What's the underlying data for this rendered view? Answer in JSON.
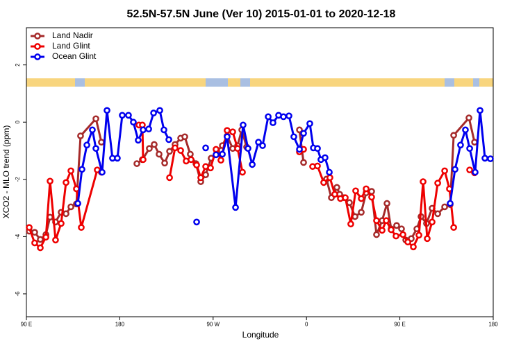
{
  "chart_data": {
    "type": "line",
    "title": "52.5N-57.5N June (Ver 10)   2015-01-01 to 2020-12-18",
    "x_label": "Longitude",
    "y_label": "XCO2 - MLO trend (ppm)",
    "xlim": [
      90,
      540
    ],
    "ylim": [
      -6.8,
      3.3
    ],
    "xticks": [
      {
        "value": 90,
        "label": "90 E"
      },
      180,
      {
        "value": 270,
        "label": "90 W"
      },
      {
        "value": 360,
        "label": "0"
      },
      {
        "value": 450,
        "label": "90 E"
      },
      {
        "value": 540,
        "label": "180"
      }
    ],
    "yticks": [
      2,
      0,
      -2,
      -4,
      -6
    ],
    "grid": false,
    "legend": "top-left",
    "series": [
      {
        "name": "Land Nadir",
        "color": "#a52a2a",
        "x": [
          92.7,
          98.0,
          103.4,
          108.8,
          112.8,
          118.1,
          123.5,
          128.2,
          132.9,
          138.2,
          142.2,
          157.0,
          162.3,
          null,
          196.5,
          201.8,
          208.5,
          213.2,
          217.9,
          223.3,
          228.0,
          233.3,
          238.7,
          242.7,
          248.0,
          253.4,
          258.1,
          262.8,
          268.1,
          273.5,
          278.9,
          283.5,
          288.9,
          293.6,
          297.6,
          302.3,
          null,
          353.2,
          357.2,
          null,
          379.3,
          384.0,
          389.3,
          392.0,
          396.0,
          401.4,
          406.8,
          412.8,
          417.5,
          422.8,
          427.5,
          432.9,
          437.6,
          441.6,
          446.9,
          451.6,
          455.7,
          461.0,
          466.4,
          470.4,
          475.7,
          481.1,
          486.5,
          493.2,
          498.5,
          501.9,
          516.6,
          522.0
        ],
        "values": [
          -3.81,
          -3.85,
          -4.1,
          -3.93,
          -3.32,
          -3.49,
          -3.15,
          -3.2,
          -2.96,
          -2.86,
          -0.48,
          0.12,
          -0.7,
          null,
          -1.45,
          -1.31,
          -0.92,
          -0.78,
          -1.12,
          -1.43,
          -1.02,
          -0.78,
          -0.56,
          -0.51,
          -1.12,
          -1.45,
          -2.08,
          -1.84,
          -1.26,
          -1.02,
          -0.82,
          -0.48,
          -0.92,
          -0.82,
          -0.27,
          -0.87,
          null,
          -0.27,
          -1.41,
          null,
          -1.99,
          -2.64,
          -2.28,
          -2.52,
          -2.64,
          -2.81,
          -3.3,
          -3.15,
          -2.47,
          -2.42,
          -3.93,
          -3.44,
          -2.84,
          -3.73,
          -3.61,
          -3.73,
          -4.12,
          -4.07,
          -3.73,
          -3.3,
          -3.54,
          -3.01,
          -3.2,
          -2.96,
          -2.88,
          -0.46,
          0.15,
          -0.7
        ]
      },
      {
        "name": "Land Glint",
        "color": "#ee0000",
        "x": [
          92.7,
          98.0,
          103.4,
          108.8,
          112.8,
          118.1,
          123.5,
          128.2,
          132.9,
          138.2,
          142.9,
          158.3,
          162.3,
          null,
          198.5,
          201.8,
          202.5,
          null,
          228.0,
          233.3,
          238.7,
          244.0,
          248.7,
          254.1,
          258.1,
          262.8,
          267.5,
          272.8,
          277.5,
          283.5,
          288.9,
          293.6,
          298.3,
          null,
          353.2,
          357.2,
          null,
          365.9,
          370.6,
          376.6,
          382.6,
          387.3,
          392.7,
          397.4,
          402.7,
          407.4,
          412.8,
          417.5,
          422.8,
          427.5,
          432.9,
          436.9,
          441.6,
          446.3,
          453.0,
          457.7,
          463.0,
          468.4,
          472.4,
          476.4,
          481.1,
          486.5,
          493.2,
          497.8,
          501.9,
          null,
          517.3,
          522.0
        ],
        "values": [
          -3.68,
          -4.22,
          -4.39,
          -4.02,
          -2.06,
          -4.12,
          -3.54,
          -2.11,
          -1.7,
          -2.33,
          -3.68,
          -1.67,
          -1.75,
          null,
          -0.1,
          -0.1,
          -1.31,
          null,
          -1.94,
          -0.9,
          -0.99,
          -1.36,
          -1.31,
          -1.5,
          -1.94,
          -1.55,
          -1.6,
          -0.95,
          -1.33,
          -0.29,
          -0.34,
          -0.92,
          -1.75,
          null,
          -1.04,
          -0.95,
          null,
          -1.55,
          -1.53,
          -2.11,
          -1.94,
          -2.52,
          -2.67,
          -2.64,
          -3.56,
          -2.4,
          -2.67,
          -2.33,
          -2.62,
          -3.44,
          -3.78,
          -3.44,
          -3.76,
          -3.98,
          -3.93,
          -4.19,
          -4.36,
          -3.95,
          -2.08,
          -4.07,
          -3.49,
          -2.13,
          -1.7,
          -2.33,
          -3.68,
          null,
          -1.67,
          -1.77
        ]
      },
      {
        "name": "Ocean Glint",
        "color": "#0000ee",
        "x": [
          139.6,
          143.6,
          148.3,
          153.6,
          157.0,
          163.0,
          167.7,
          173.0,
          177.7,
          182.4,
          188.4,
          193.1,
          197.8,
          202.5,
          207.9,
          212.6,
          218.6,
          222.6,
          227.3,
          null,
          254.1,
          null,
          262.8,
          null,
          272.8,
          278.9,
          283.5,
          291.6,
          298.9,
          303.6,
          307.7,
          313.7,
          317.7,
          323.1,
          327.7,
          333.1,
          337.8,
          343.1,
          347.8,
          353.2,
          357.2,
          363.2,
          366.6,
          370.6,
          373.9,
          377.9,
          382.0,
          null,
          498.5,
          503.2,
          508.5,
          513.2,
          517.3,
          522.6,
          527.3,
          532.0,
          537.3
        ],
        "values": [
          -2.84,
          -1.65,
          -0.8,
          -0.27,
          -0.92,
          -1.75,
          0.41,
          -1.26,
          -1.26,
          0.24,
          0.24,
          0.0,
          -0.63,
          -0.27,
          -0.24,
          0.32,
          0.41,
          -0.27,
          -0.61,
          null,
          -3.49,
          null,
          -0.9,
          null,
          -1.14,
          -1.12,
          -0.51,
          -2.98,
          -0.1,
          -0.92,
          -1.48,
          -0.7,
          -0.82,
          0.19,
          -0.02,
          0.24,
          0.19,
          0.22,
          -0.51,
          -0.95,
          -0.39,
          -0.05,
          -0.9,
          -0.92,
          -1.31,
          -1.24,
          -1.75,
          null,
          -2.84,
          -1.65,
          -0.8,
          -0.27,
          -0.92,
          -1.75,
          0.41,
          -1.26,
          -1.28
        ]
      }
    ]
  }
}
